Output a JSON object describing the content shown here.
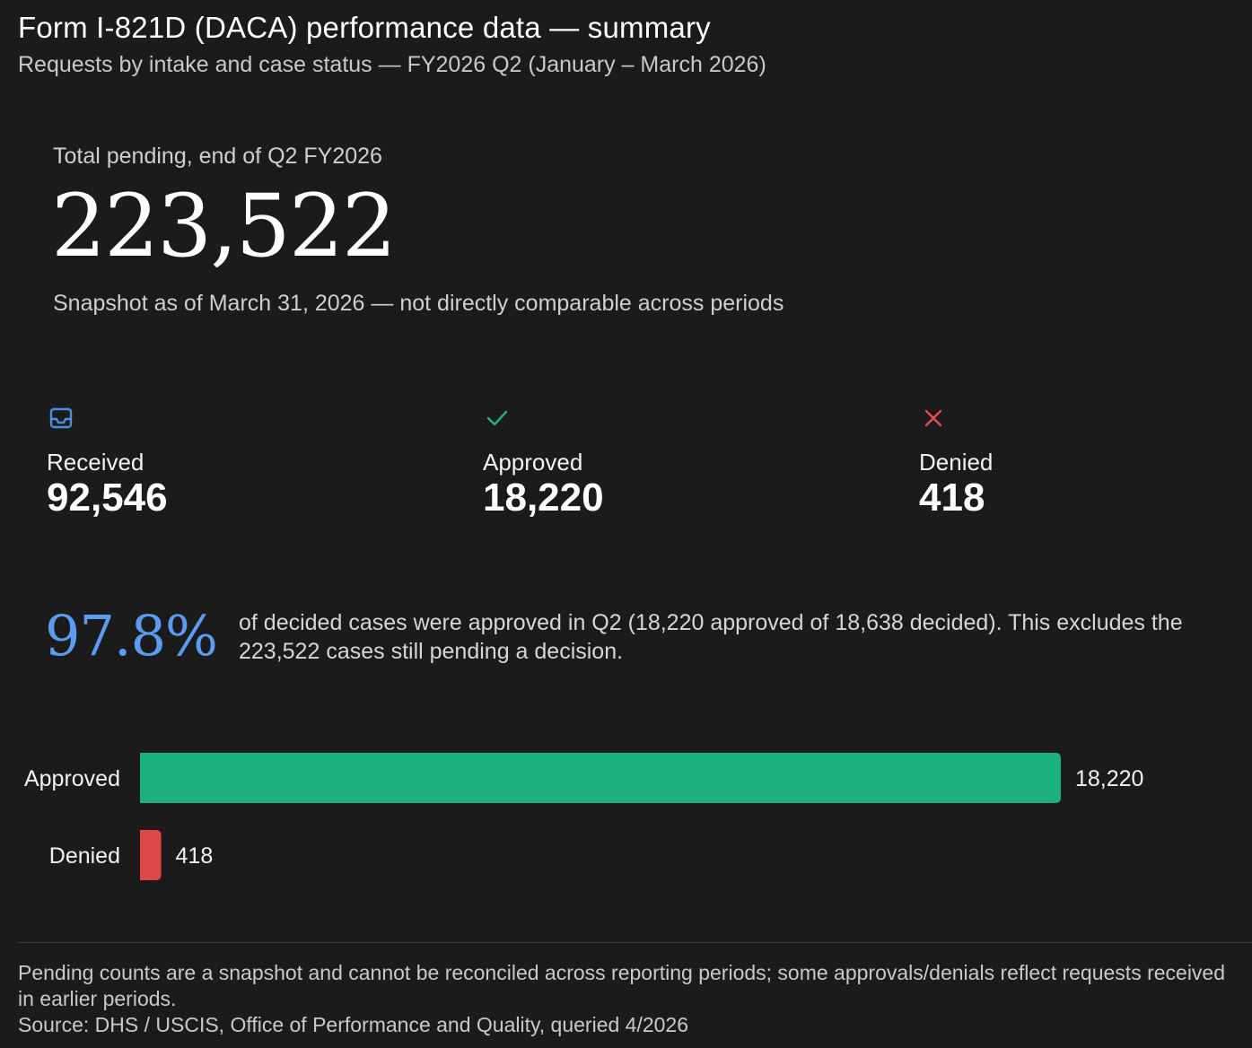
{
  "header": {
    "title": "Form I-821D (DACA) performance data — summary",
    "subtitle": "Requests by intake and case status — FY2026 Q2 (January – March 2026)"
  },
  "hero": {
    "label": "Total pending, end of Q2 FY2026",
    "value": "223,522",
    "note": "Snapshot as of March 31, 2026 — not directly comparable across periods"
  },
  "stats": [
    {
      "label": "Received",
      "value": "92,546",
      "icon": "inbox-icon",
      "color": "#4a90e2"
    },
    {
      "label": "Approved",
      "value": "18,220",
      "icon": "check-icon",
      "color": "#22b07d"
    },
    {
      "label": "Denied",
      "value": "418",
      "icon": "x-icon",
      "color": "#e05050"
    }
  ],
  "approval": {
    "rate": "97.8%",
    "text": "of decided cases were approved in Q2 (18,220 approved of 18,638 decided). This excludes the 223,522 cases still pending a decision."
  },
  "chart_data": {
    "type": "bar",
    "orientation": "horizontal",
    "categories": [
      "Approved",
      "Denied"
    ],
    "values": [
      18220,
      418
    ],
    "value_labels": [
      "18,220",
      "418"
    ],
    "colors": [
      "#1cb07c",
      "#e04848"
    ],
    "xlim": [
      0,
      18220
    ],
    "grid": false
  },
  "footer": {
    "note": "Pending counts are a snapshot and cannot be reconciled across reporting periods; some approvals/denials reflect requests received in earlier periods.",
    "source": "Source: DHS / USCIS, Office of Performance and Quality, queried 4/2026"
  }
}
